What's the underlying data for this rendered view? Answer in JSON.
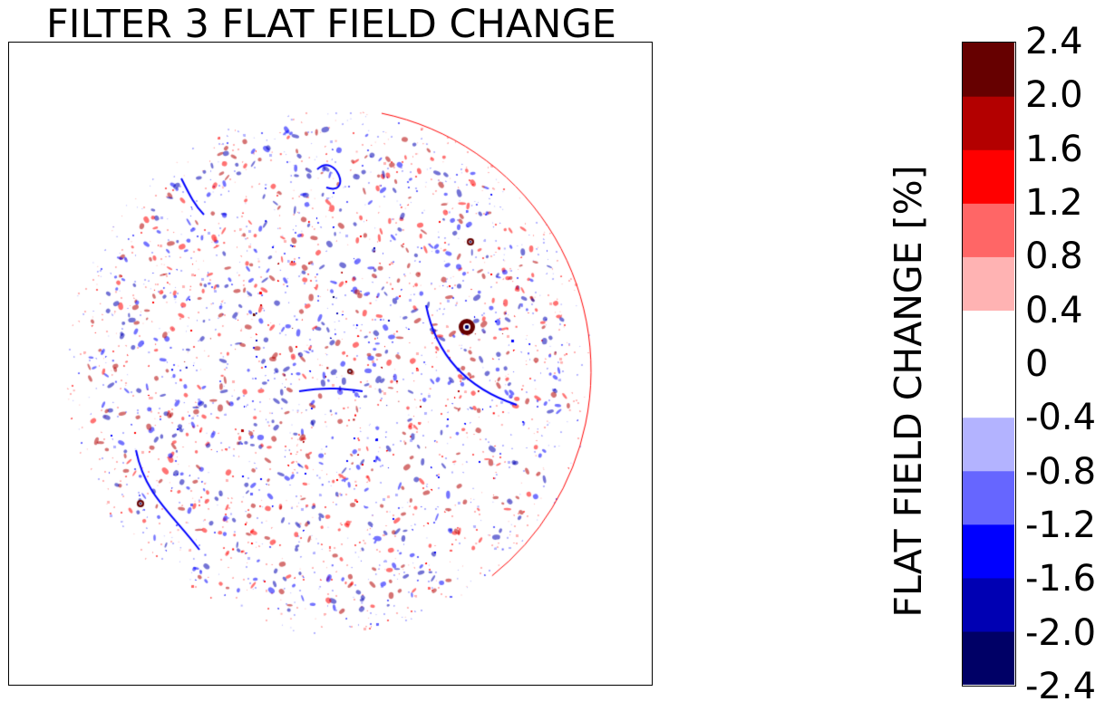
{
  "chart_data": {
    "type": "heatmap",
    "title": "FILTER 3 FLAT FIELD CHANGE",
    "colorbar": {
      "label": "FLAT FIELD CHANGE [%]",
      "levels": [
        -2.4,
        -2.0,
        -1.6,
        -1.2,
        -0.8,
        -0.4,
        0,
        0.4,
        0.8,
        1.2,
        1.6,
        2.0,
        2.4
      ],
      "tick_labels": [
        "2.4",
        "2.0",
        "1.6",
        "1.2",
        "0.8",
        "0.4",
        "0",
        "-0.4",
        "-0.8",
        "-1.2",
        "-1.6",
        "-2.0",
        "-2.4"
      ],
      "colors": [
        "#000066",
        "#0000b3",
        "#0000ff",
        "#6666ff",
        "#b3b3ff",
        "#ffffff",
        "#ffffff",
        "#ffb3b3",
        "#ff6666",
        "#ff0000",
        "#b30000",
        "#660000"
      ]
    },
    "image": {
      "shape": "solar-disk",
      "pattern": "speckled red/blue flat field change",
      "axes_ticks": false
    }
  }
}
